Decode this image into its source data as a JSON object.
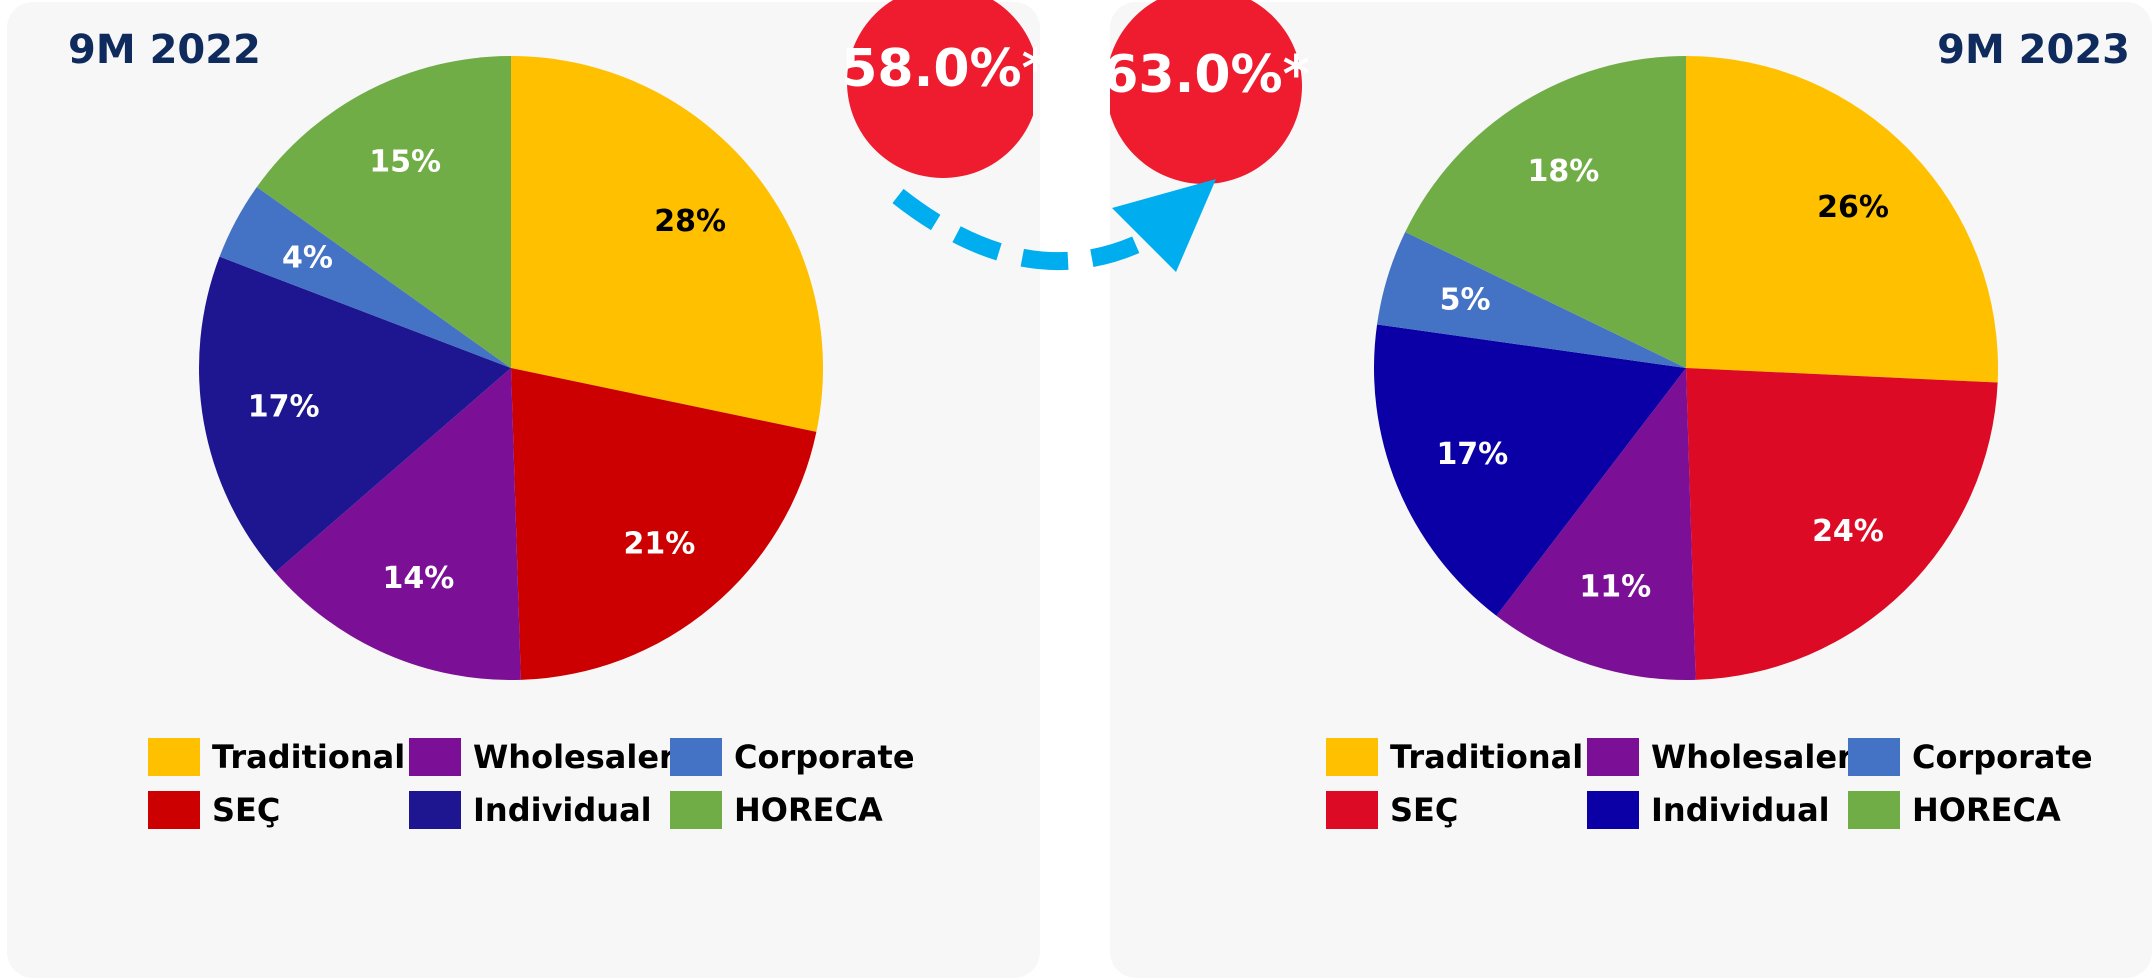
{
  "chart_data": [
    {
      "type": "pie",
      "title": "9M 2022",
      "annotation": "58.0%*",
      "categories": [
        "Traditional",
        "SEÇ",
        "Wholesaler",
        "Individual",
        "Corporate",
        "HORECA"
      ],
      "values": [
        28,
        21,
        14,
        17,
        4,
        15
      ],
      "value_labels": [
        "28%",
        "21%",
        "14%",
        "17%",
        "4%",
        "15%"
      ],
      "colors": [
        "#FFC000",
        "#CC0000",
        "#7B0F96",
        "#1E1690",
        "#4472C4",
        "#70AD47"
      ]
    },
    {
      "type": "pie",
      "title": "9M 2023",
      "annotation": "63.0%*",
      "categories": [
        "Traditional",
        "SEÇ",
        "Wholesaler",
        "Individual",
        "Corporate",
        "HORECA"
      ],
      "values": [
        26,
        24,
        11,
        17,
        5,
        18
      ],
      "value_labels": [
        "26%",
        "24%",
        "11%",
        "17%",
        "5%",
        "18%"
      ],
      "colors": [
        "#FFC000",
        "#DC0A24",
        "#7B0F96",
        "#0A00A6",
        "#4472C4",
        "#70AD47"
      ]
    }
  ]
}
